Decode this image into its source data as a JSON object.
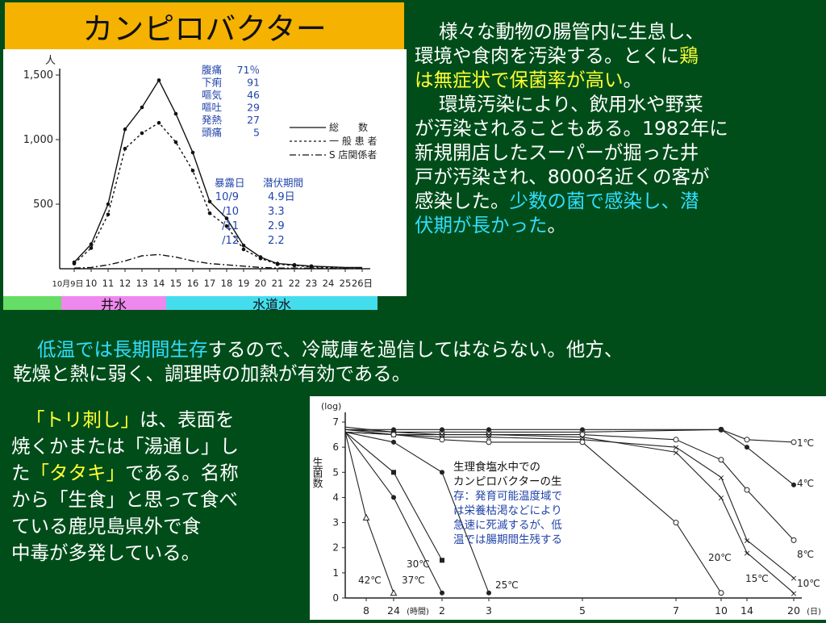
{
  "title": "カンピロバクター",
  "right_paragraph": {
    "line1": "様々な動物の腸管内に生息し、",
    "line2": "環境や食肉を汚染する。とくに",
    "highlight1": "鶏",
    "highlight2": "は無症状で保菌率が高い",
    "line3_end": "。",
    "line4": "環境汚染により、飲用水や野菜",
    "line5": "が汚染されることもある。1982年に",
    "line6": "新規開店したスーパーが掘った井",
    "line7": "戸が汚染され、8000名近くの客が",
    "line8_start": "感染した。",
    "highlight3": "少数の菌で感染し、潜",
    "highlight4": "伏期が長かった",
    "line9_end": "。"
  },
  "wide_paragraph": {
    "highlight": "低温では長期間生存",
    "line1_rest": "するので、冷蔵庫を過信してはならない。他方、",
    "line2": "乾燥と熱に弱く、調理時の加熱が有効である。"
  },
  "left_paragraph": {
    "hl1": "「トリ刺し」",
    "l1": "は、表面を",
    "l2": "焼くかまたは「湯通し」し",
    "l3a": "た",
    "hl2": "「タタキ」",
    "l3b": "である。名称",
    "l4": "から「生食」と思って食べ",
    "l5": "ている鹿児島県外で食",
    "l6": "中毒が多発している。"
  },
  "bands": {
    "well": "井水",
    "tap": "水道水"
  },
  "colors": {
    "background": "#004d1a",
    "title_bg": "#f5b200",
    "yellow": "#ffff33",
    "cyan": "#33ddff",
    "band_green": "#66dd66",
    "band_pink": "#ee88ee",
    "band_cyan": "#44ddee"
  },
  "chart_data": [
    {
      "type": "line",
      "unit_label": "人",
      "x_label_prefix": "10月",
      "categories": [
        "9日",
        "10",
        "11",
        "12",
        "13",
        "14",
        "15",
        "16",
        "17",
        "18",
        "19",
        "20",
        "21",
        "22",
        "23",
        "24",
        "25",
        "26日"
      ],
      "ylim": [
        0,
        1500
      ],
      "yticks": [
        "500",
        "1,000",
        "1,500"
      ],
      "series": [
        {
          "name": "総数",
          "legend": "総　　数",
          "values": [
            50,
            190,
            500,
            1080,
            1250,
            1460,
            1200,
            900,
            520,
            390,
            180,
            90,
            40,
            30,
            20,
            15,
            10,
            10
          ]
        },
        {
          "name": "一般患者",
          "legend": "一 般 患 者",
          "values": [
            40,
            160,
            420,
            930,
            1050,
            1130,
            980,
            760,
            430,
            330,
            150,
            80,
            35,
            25,
            15,
            10,
            8,
            8
          ]
        },
        {
          "name": "S店関係者",
          "legend": "S 店関係者",
          "values": [
            5,
            10,
            30,
            60,
            100,
            110,
            90,
            60,
            40,
            30,
            20,
            10,
            5,
            5,
            5,
            3,
            2,
            2
          ]
        }
      ],
      "symptoms": [
        {
          "label": "腹痛",
          "value": "71％"
        },
        {
          "label": "下痢",
          "value": "91"
        },
        {
          "label": "嘔気",
          "value": "46"
        },
        {
          "label": "嘔吐",
          "value": "29"
        },
        {
          "label": "発熱",
          "value": "27"
        },
        {
          "label": "頭痛",
          "value": "5"
        }
      ],
      "exposure_header": [
        "暴露日",
        "潜伏期間"
      ],
      "exposure": [
        {
          "date": "10/9",
          "period": "4.9日"
        },
        {
          "date": "/10",
          "period": "3.3"
        },
        {
          "date": "/11",
          "period": "2.9"
        },
        {
          "date": "/12",
          "period": "2.2"
        }
      ]
    },
    {
      "type": "line",
      "ylabel_top": "(log)",
      "ylabel": "生菌数",
      "xlabel_hours": "(時間)",
      "xlabel_days": "(日)",
      "ylim": [
        0,
        7
      ],
      "yticks": [
        "0",
        "1",
        "2",
        "3",
        "4",
        "5",
        "6",
        "7"
      ],
      "xticks": [
        "8",
        "24",
        "2",
        "3",
        "5",
        "7",
        "10",
        "14",
        "20"
      ],
      "annotation": [
        "生理食塩水中での",
        "カンピロバクターの生",
        "存：発育可能温度域で",
        "は栄養枯渇などにより",
        "急速に死滅するが、低",
        "温では腸期間生残する"
      ],
      "series": [
        {
          "name": "1℃",
          "x": [
            "0",
            "24",
            "2",
            "3",
            "5",
            "10",
            "14",
            "20"
          ],
          "values": [
            6.7,
            6.6,
            6.6,
            6.6,
            6.6,
            6.7,
            6.3,
            6.2
          ]
        },
        {
          "name": "4℃",
          "x": [
            "0",
            "24",
            "2",
            "3",
            "5",
            "10",
            "14",
            "20"
          ],
          "values": [
            6.7,
            6.7,
            6.7,
            6.7,
            6.7,
            6.7,
            6.0,
            4.5
          ]
        },
        {
          "name": "8℃",
          "x": [
            "0",
            "24",
            "2",
            "3",
            "5",
            "7",
            "10",
            "14",
            "20"
          ],
          "values": [
            6.6,
            6.5,
            6.5,
            6.5,
            6.5,
            6.3,
            5.5,
            4.3,
            2.3
          ]
        },
        {
          "name": "10℃",
          "x": [
            "0",
            "24",
            "2",
            "3",
            "5",
            "7",
            "10",
            "14",
            "20"
          ],
          "values": [
            6.7,
            6.5,
            6.4,
            6.4,
            6.3,
            6.0,
            4.8,
            2.3,
            0.8
          ]
        },
        {
          "name": "15℃",
          "x": [
            "0",
            "24",
            "2",
            "3",
            "5",
            "7",
            "10",
            "14",
            "20"
          ],
          "values": [
            6.8,
            6.6,
            6.5,
            6.5,
            6.4,
            5.8,
            4.0,
            1.8,
            0.2
          ]
        },
        {
          "name": "20℃",
          "x": [
            "0",
            "24",
            "2",
            "3",
            "5",
            "7",
            "10"
          ],
          "values": [
            6.6,
            6.5,
            6.3,
            6.2,
            6.2,
            3.0,
            0.2
          ]
        },
        {
          "name": "25℃",
          "x": [
            "0",
            "24",
            "2",
            "3"
          ],
          "values": [
            6.6,
            6.2,
            5.0,
            0.2
          ]
        },
        {
          "name": "30℃",
          "x": [
            "0",
            "24",
            "2"
          ],
          "values": [
            6.6,
            5.0,
            1.5
          ]
        },
        {
          "name": "37℃",
          "x": [
            "0",
            "24",
            "2"
          ],
          "values": [
            6.6,
            4.0,
            0.2
          ]
        },
        {
          "name": "42℃",
          "x": [
            "0",
            "8",
            "24"
          ],
          "values": [
            6.6,
            3.2,
            0.2
          ]
        }
      ]
    }
  ]
}
